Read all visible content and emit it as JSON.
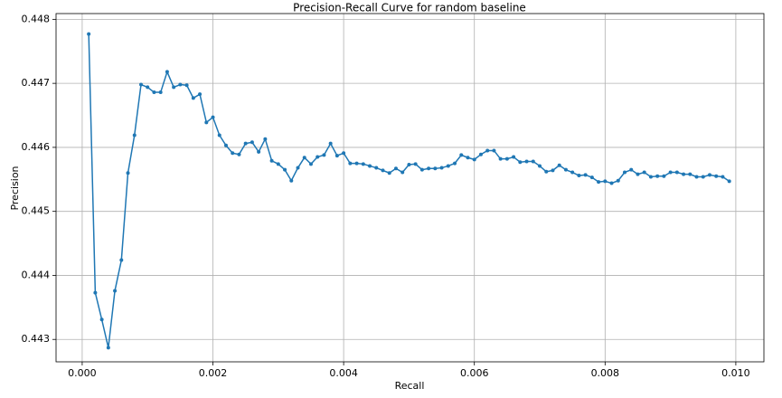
{
  "chart_data": {
    "type": "line",
    "title": "Precision-Recall Curve for random baseline",
    "x_label": "Recall",
    "y_label": "Precision",
    "x": [
      0.0001,
      0.0002,
      0.0003,
      0.0004,
      0.0005,
      0.0006,
      0.0007,
      0.0008,
      0.0009,
      0.001,
      0.0011,
      0.0012,
      0.0013,
      0.0014,
      0.0015,
      0.0016,
      0.0017,
      0.0018,
      0.0019,
      0.002,
      0.0021,
      0.0022,
      0.0023,
      0.0024,
      0.0025,
      0.0026,
      0.0027,
      0.0028,
      0.0029,
      0.003,
      0.0031,
      0.0032,
      0.0033,
      0.0034,
      0.0035,
      0.0036,
      0.0037,
      0.0038,
      0.0039,
      0.004,
      0.0041,
      0.0042,
      0.0043,
      0.0044,
      0.0045,
      0.0046,
      0.0047,
      0.0048,
      0.0049,
      0.005,
      0.0051,
      0.0052,
      0.0053,
      0.0054,
      0.0055,
      0.0056,
      0.0057,
      0.0058,
      0.0059,
      0.006,
      0.0061,
      0.0062,
      0.0063,
      0.0064,
      0.0065,
      0.0066,
      0.0067,
      0.0068,
      0.0069,
      0.007,
      0.0071,
      0.0072,
      0.0073,
      0.0074,
      0.0075,
      0.0076,
      0.0077,
      0.0078,
      0.0079,
      0.008,
      0.0081,
      0.0082,
      0.0083,
      0.0084,
      0.0085,
      0.0086,
      0.0087,
      0.0088,
      0.0089,
      0.009,
      0.0091,
      0.0092,
      0.0093,
      0.0094,
      0.0095,
      0.0096,
      0.0097,
      0.0098,
      0.0099
    ],
    "series": [
      {
        "color": "#1f77b4",
        "values": [
          0.44777,
          0.44373,
          0.44331,
          0.44287,
          0.44376,
          0.44424,
          0.4456,
          0.44619,
          0.44698,
          0.44694,
          0.44686,
          0.44686,
          0.44718,
          0.44694,
          0.44698,
          0.44697,
          0.44677,
          0.44683,
          0.44639,
          0.44647,
          0.44619,
          0.44603,
          0.44591,
          0.44589,
          0.44606,
          0.44608,
          0.44593,
          0.44613,
          0.44579,
          0.44574,
          0.44565,
          0.44548,
          0.44568,
          0.44584,
          0.44574,
          0.44585,
          0.44588,
          0.44606,
          0.44587,
          0.44591,
          0.44575,
          0.44575,
          0.44574,
          0.44571,
          0.44568,
          0.44564,
          0.4456,
          0.44567,
          0.44561,
          0.44573,
          0.44574,
          0.44565,
          0.44567,
          0.44567,
          0.44568,
          0.44571,
          0.44575,
          0.44588,
          0.44584,
          0.44581,
          0.44589,
          0.44595,
          0.44595,
          0.44582,
          0.44582,
          0.44585,
          0.44577,
          0.44578,
          0.44578,
          0.44571,
          0.44562,
          0.44564,
          0.44572,
          0.44565,
          0.44561,
          0.44556,
          0.44557,
          0.44553,
          0.44546,
          0.44547,
          0.44544,
          0.44548,
          0.44561,
          0.44565,
          0.44558,
          0.44561,
          0.44554,
          0.44555,
          0.44555,
          0.44561,
          0.44561,
          0.44558,
          0.44558,
          0.44554,
          0.44554,
          0.44557,
          0.44555,
          0.44554,
          0.44547
        ]
      }
    ],
    "xlim": [
      -0.0004,
      0.01043
    ],
    "ylim": [
      0.44265,
      0.44809
    ],
    "xticks": [
      {
        "value": 0,
        "label": "0.000"
      },
      0.002,
      0.004,
      0.006,
      0.008,
      {
        "value": 0.01,
        "label": "0.010"
      }
    ],
    "yticks": [
      0.443,
      0.444,
      0.445,
      0.446,
      0.447,
      0.448
    ],
    "grid": true
  }
}
